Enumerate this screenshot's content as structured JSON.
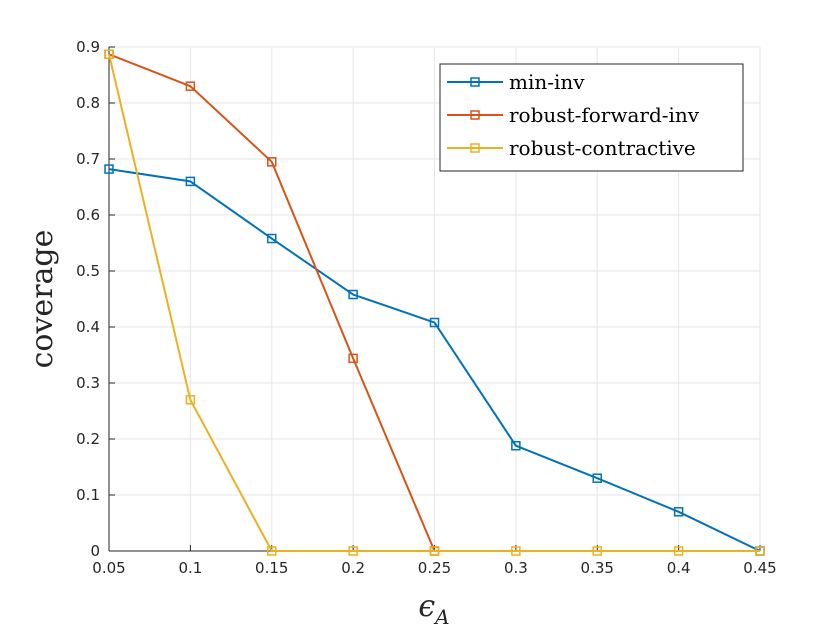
{
  "chart_data": {
    "type": "line",
    "title": "",
    "xlabel": "ϵ",
    "xlabel_subscript": "A",
    "ylabel": "coverage",
    "xlim": [
      0.05,
      0.45
    ],
    "ylim": [
      0,
      0.9
    ],
    "x": [
      0.05,
      0.1,
      0.15,
      0.2,
      0.25,
      0.3,
      0.35,
      0.4,
      0.45
    ],
    "x_tick_labels": [
      "0.05",
      "0.1",
      "0.15",
      "0.2",
      "0.25",
      "0.3",
      "0.35",
      "0.4",
      "0.45"
    ],
    "y_ticks": [
      0,
      0.1,
      0.2,
      0.3,
      0.4,
      0.5,
      0.6,
      0.7,
      0.8,
      0.9
    ],
    "y_tick_labels": [
      "0",
      "0.1",
      "0.2",
      "0.3",
      "0.4",
      "0.5",
      "0.6",
      "0.7",
      "0.8",
      "0.9"
    ],
    "grid": true,
    "legend_position": "top-right",
    "marker": "square",
    "series": [
      {
        "name": "min-inv",
        "color": "#0072BD",
        "values": [
          0.682,
          0.66,
          0.558,
          0.458,
          0.408,
          0.188,
          0.13,
          0.07,
          0.0
        ]
      },
      {
        "name": "robust-forward-inv",
        "color": "#D95319",
        "values": [
          0.887,
          0.83,
          0.695,
          0.344,
          0.0,
          null,
          null,
          null,
          null
        ]
      },
      {
        "name": "robust-contractive",
        "color": "#EDB120",
        "values": [
          0.887,
          0.27,
          0.0,
          0.0,
          0.0,
          0.0,
          0.0,
          0.0,
          0.0
        ]
      }
    ]
  }
}
